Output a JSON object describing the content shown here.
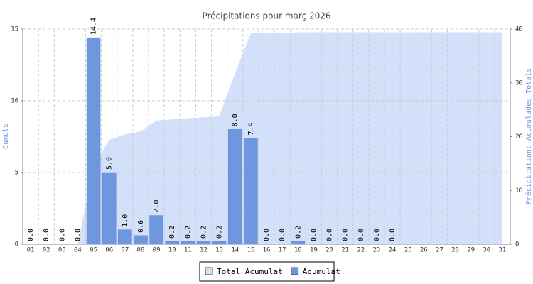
{
  "chart_data": {
    "type": "bar",
    "title": "Précipitations pour març 2026",
    "y_label": "Cumuls",
    "y2_label": "Précipitations Acumulades Totals",
    "categories": [
      "01",
      "02",
      "03",
      "04",
      "05",
      "06",
      "07",
      "08",
      "09",
      "10",
      "11",
      "12",
      "13",
      "14",
      "15",
      "16",
      "17",
      "18",
      "19",
      "20",
      "21",
      "22",
      "23",
      "24",
      "25",
      "26",
      "27",
      "28",
      "29",
      "30",
      "31"
    ],
    "series": [
      {
        "name": "Total Acumulat",
        "type": "area",
        "axis": "y2",
        "color": "#d2e0fa",
        "values": [
          0,
          0,
          0,
          0,
          14.4,
          19.4,
          20.4,
          21.0,
          23.0,
          23.2,
          23.4,
          23.6,
          23.8,
          31.8,
          39.2,
          39.2,
          39.2,
          39.4,
          39.4,
          39.4,
          39.4,
          39.4,
          39.4,
          39.4,
          39.4,
          39.4,
          39.4,
          39.4,
          39.4,
          39.4,
          39.4
        ]
      },
      {
        "name": "Acumulat",
        "type": "bar",
        "axis": "y",
        "color": "#6f97e0",
        "values": [
          0,
          0,
          0,
          0,
          14.4,
          5.0,
          1.0,
          0.6,
          2.0,
          0.2,
          0.2,
          0.2,
          0.2,
          8.0,
          7.4,
          0,
          0,
          0.2,
          0,
          0,
          0,
          0,
          0,
          0,
          null,
          null,
          null,
          null,
          null,
          null,
          null
        ],
        "value_labels": [
          "0.0",
          "0.0",
          "0.0",
          "0.0",
          "14.4",
          "5.0",
          "1.0",
          "0.6",
          "2.0",
          "0.2",
          "0.2",
          "0.2",
          "0.2",
          "8.0",
          "7.4",
          "0.0",
          "0.0",
          "0.2",
          "0.0",
          "0.0",
          "0.0",
          "0.0",
          "0.0",
          "0.0",
          null,
          null,
          null,
          null,
          null,
          null,
          null
        ]
      }
    ],
    "ylim": [
      0,
      15
    ],
    "yticks": [
      0,
      5,
      10,
      15
    ],
    "y2lim": [
      0,
      40
    ],
    "y2ticks": [
      0,
      10,
      20,
      30,
      40
    ],
    "grid": true,
    "legend": "bottom"
  }
}
